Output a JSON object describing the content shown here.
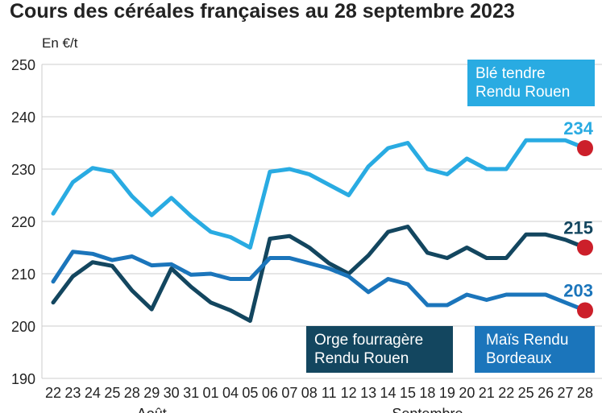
{
  "title": "Cours des céréales françaises au 28 septembre 2023",
  "unit_label": "En €/t",
  "colors": {
    "ble": "#29abe2",
    "orge": "#13465f",
    "mais": "#1b75bb",
    "marker": "#cc1f2a",
    "grid": "#cccccc"
  },
  "chart_data": {
    "type": "line",
    "title": "Cours des céréales françaises au 28 septembre 2023",
    "ylabel": "En €/t",
    "ylim": [
      190,
      250
    ],
    "yticks": [
      190,
      200,
      210,
      220,
      230,
      240,
      250
    ],
    "grid": true,
    "categories": [
      "22",
      "23",
      "24",
      "25",
      "28",
      "29",
      "30",
      "31",
      "01",
      "04",
      "05",
      "06",
      "07",
      "08",
      "11",
      "12",
      "13",
      "14",
      "15",
      "18",
      "19",
      "20",
      "21",
      "22",
      "25",
      "26",
      "27",
      "28"
    ],
    "month_labels": [
      {
        "label": "Août",
        "start_index": 0,
        "end_index": 10
      },
      {
        "label": "Septembre",
        "start_index": 11,
        "end_index": 27
      }
    ],
    "series": [
      {
        "name": "Blé tendre Rendu Rouen",
        "color": "#29abe2",
        "values": [
          221.5,
          227.5,
          230.2,
          229.5,
          224.8,
          221.2,
          224.5,
          221,
          218,
          217,
          215,
          229.5,
          230,
          229,
          227,
          225,
          230.5,
          234,
          235,
          230,
          229,
          232,
          230,
          230,
          235.5,
          235.5,
          235.5,
          234
        ]
      },
      {
        "name": "Orge fourragère Rendu Rouen",
        "color": "#13465f",
        "values": [
          204.5,
          209.5,
          212.2,
          211.5,
          206.8,
          203.2,
          211,
          207.5,
          204.5,
          203,
          201,
          216.7,
          217.2,
          215,
          212,
          210,
          213.5,
          218,
          219,
          214,
          213,
          215,
          213,
          213,
          217.5,
          217.5,
          216.5,
          215
        ]
      },
      {
        "name": "Maïs Rendu Bordeaux",
        "color": "#1b75bb",
        "values": [
          208.5,
          214.2,
          213.8,
          212.6,
          213.3,
          211.6,
          211.8,
          209.8,
          210,
          209,
          209,
          213,
          213,
          212,
          211,
          209.5,
          206.5,
          209,
          208,
          204,
          204,
          206,
          205,
          206,
          206,
          206,
          204.5,
          203
        ]
      }
    ],
    "end_labels": [
      "234",
      "215",
      "203"
    ]
  },
  "legend": {
    "ble": [
      "Blé tendre",
      "Rendu Rouen"
    ],
    "orge": [
      "Orge fourragère",
      "Rendu Rouen"
    ],
    "mais": [
      "Maïs Rendu",
      "Bordeaux"
    ]
  }
}
